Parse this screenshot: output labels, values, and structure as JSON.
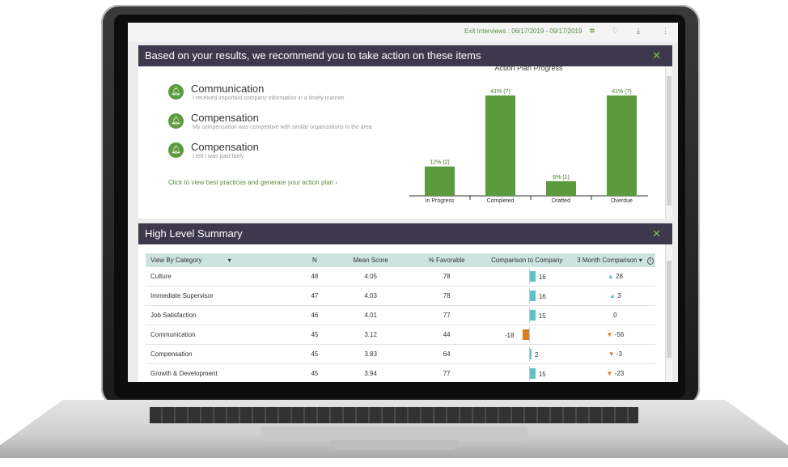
{
  "header": {
    "date_range": "Exit Interviews : 06/17/2019 - 09/17/2019",
    "icons": [
      "gear-icon",
      "heart-icon",
      "download-icon",
      "more-vertical-icon"
    ]
  },
  "recommend": {
    "title": "Based on your results, we recommend you to take action on these items",
    "items": [
      {
        "title": "Communication",
        "sub": "I received important company information in a timely manner"
      },
      {
        "title": "Compensation",
        "sub": "My compensation was competitive with similar organizations in the area"
      },
      {
        "title": "Compensation",
        "sub": "I felt I was paid fairly"
      }
    ],
    "cta": "Click to view best practices and generate your action plan ›"
  },
  "chart_data": {
    "type": "bar",
    "title": "Action Plan Progress",
    "categories": [
      "In Progress",
      "Completed",
      "Drafted",
      "Overdue"
    ],
    "values": [
      12,
      41,
      6,
      41
    ],
    "labels": [
      "12% (2)",
      "41% (7)",
      "6% (1)",
      "41% (7)"
    ],
    "ylim": [
      0,
      45
    ],
    "color": "#5b9a3d"
  },
  "summary": {
    "title": "High Level Summary",
    "columns": [
      "View By Category",
      "N",
      "Mean Score",
      "% Favorable",
      "Comparison to Company",
      "3 Month Comparison"
    ],
    "rows": [
      {
        "cat": "Culture",
        "n": "48",
        "mean": "4.05",
        "fav": "78",
        "cmp": 16,
        "cmp_label": "16",
        "delta": "28",
        "dir": "up"
      },
      {
        "cat": "Immediate Supervisor",
        "n": "47",
        "mean": "4.03",
        "fav": "78",
        "cmp": 16,
        "cmp_label": "16",
        "delta": "3",
        "dir": "up"
      },
      {
        "cat": "Job Satisfaction",
        "n": "46",
        "mean": "4.01",
        "fav": "77",
        "cmp": 15,
        "cmp_label": "15",
        "delta": "0",
        "dir": "none"
      },
      {
        "cat": "Communication",
        "n": "45",
        "mean": "3.12",
        "fav": "44",
        "cmp": -18,
        "cmp_label": "-18",
        "delta": "-56",
        "dir": "down"
      },
      {
        "cat": "Compensation",
        "n": "45",
        "mean": "3.83",
        "fav": "64",
        "cmp": 2,
        "cmp_label": "2",
        "delta": "-3",
        "dir": "down"
      },
      {
        "cat": "Growth & Development",
        "n": "45",
        "mean": "3.94",
        "fav": "77",
        "cmp": 15,
        "cmp_label": "15",
        "delta": "-23",
        "dir": "down"
      }
    ],
    "colors": {
      "positive": "#5bc2c8",
      "negative": "#e07a1f"
    }
  }
}
